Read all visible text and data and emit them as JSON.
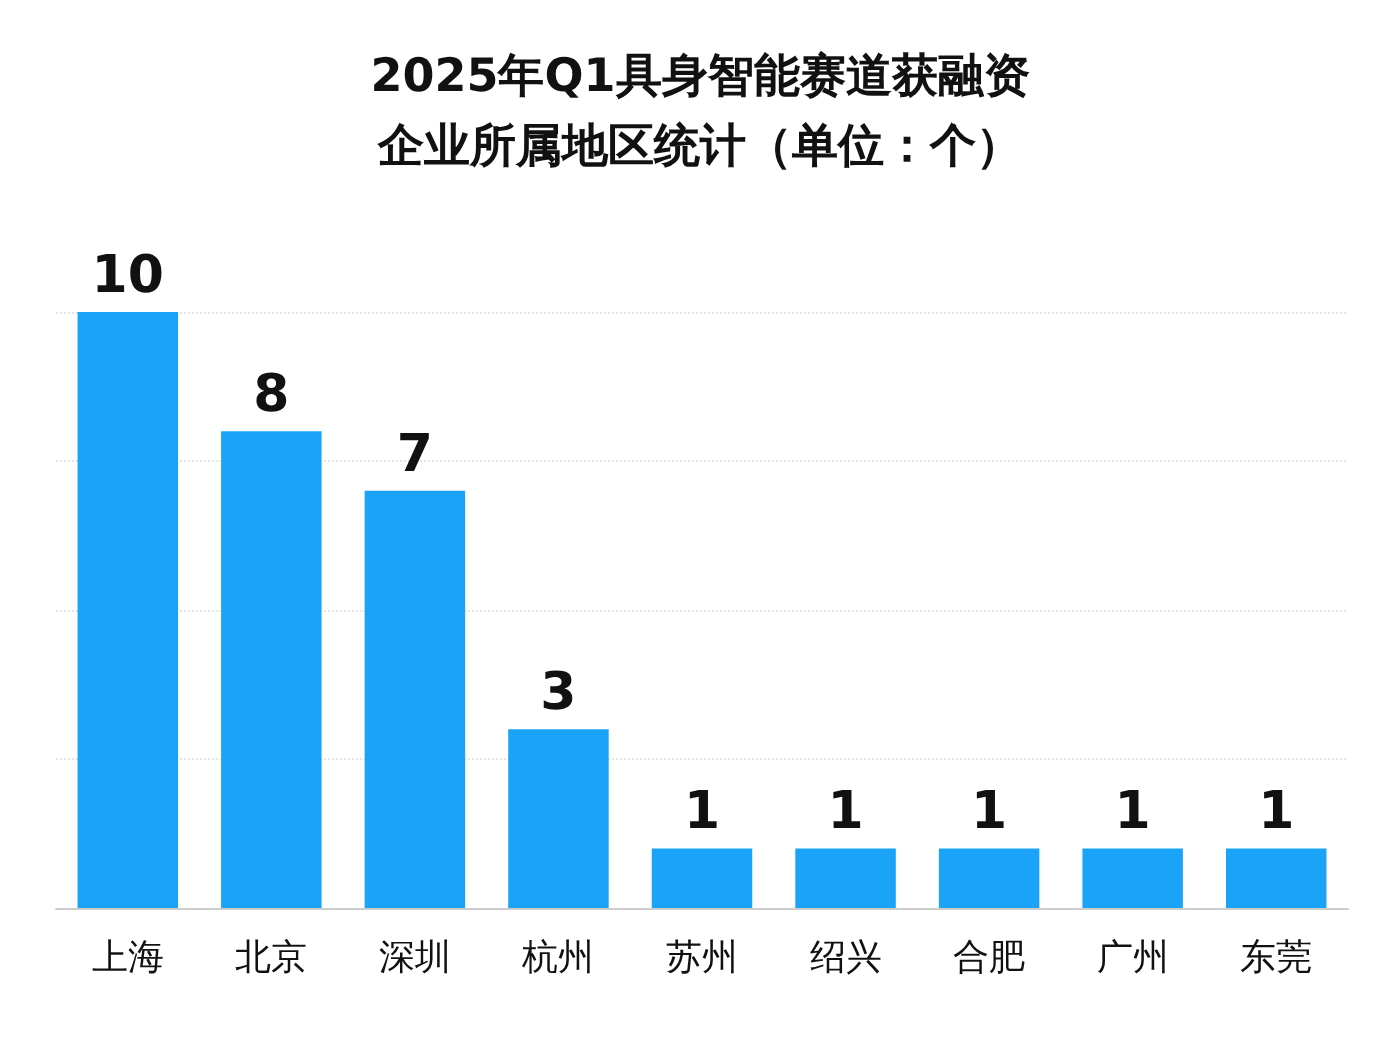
{
  "chart_data": {
    "type": "bar",
    "title": "2025年Q1具身智能赛道获融资",
    "subtitle": "企业所属地区统计（单位：个）",
    "categories": [
      "上海",
      "北京",
      "深圳",
      "杭州",
      "苏州",
      "绍兴",
      "合肥",
      "广州",
      "东莞"
    ],
    "values": [
      10,
      8,
      7,
      3,
      1,
      1,
      1,
      1,
      1
    ],
    "color": "#1ba4f7",
    "data_labels": true,
    "ylim": [
      0,
      10
    ],
    "yticks": [
      {
        "value": 0,
        "label": null
      },
      {
        "value": 2.5,
        "label": null
      },
      {
        "value": 5,
        "label": null
      },
      {
        "value": 7.5,
        "label": null
      },
      {
        "value": 10,
        "label": null
      }
    ],
    "grid": "y",
    "tick_labels": "x"
  }
}
